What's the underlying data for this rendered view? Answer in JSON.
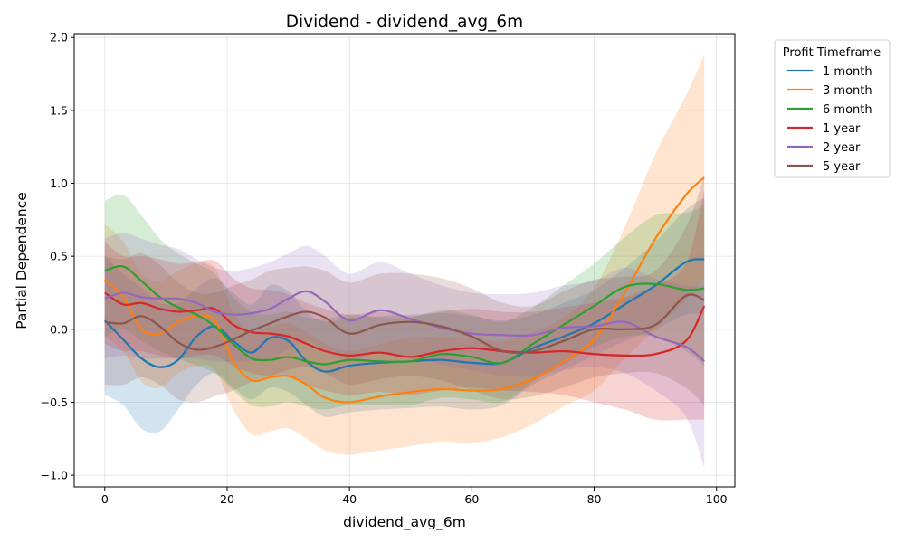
{
  "chart_data": {
    "type": "line",
    "title": "Dividend - dividend_avg_6m",
    "xlabel": "dividend_avg_6m",
    "ylabel": "Partial Dependence",
    "xlim": [
      -5,
      103
    ],
    "ylim": [
      -1.08,
      2.02
    ],
    "xticks": [
      0,
      20,
      40,
      60,
      80,
      100
    ],
    "xtick_labels": [
      "0",
      "20",
      "40",
      "60",
      "80",
      "100"
    ],
    "yticks": [
      -1.0,
      -0.5,
      0.0,
      0.5,
      1.0,
      1.5,
      2.0
    ],
    "ytick_labels": [
      "−1.0",
      "−0.5",
      "0.0",
      "0.5",
      "1.0",
      "1.5",
      "2.0"
    ],
    "grid": true,
    "legend": {
      "title": "Profit Timeframe",
      "placement": "outside-right"
    },
    "series": [
      {
        "name": "1 month",
        "color": "#1f77b4",
        "x": [
          0,
          3,
          6,
          9,
          12,
          15,
          18,
          21,
          24,
          27,
          30,
          33,
          36,
          40,
          45,
          50,
          55,
          60,
          65,
          70,
          75,
          80,
          85,
          90,
          95,
          98
        ],
        "y": [
          0.06,
          -0.07,
          -0.2,
          -0.26,
          -0.21,
          -0.05,
          0.02,
          -0.08,
          -0.16,
          -0.06,
          -0.08,
          -0.22,
          -0.29,
          -0.25,
          -0.23,
          -0.22,
          -0.21,
          -0.23,
          -0.23,
          -0.13,
          -0.05,
          0.04,
          0.17,
          0.3,
          0.46,
          0.48
        ],
        "lower": [
          -0.45,
          -0.52,
          -0.68,
          -0.7,
          -0.55,
          -0.38,
          -0.3,
          -0.4,
          -0.48,
          -0.4,
          -0.43,
          -0.52,
          -0.6,
          -0.57,
          -0.55,
          -0.54,
          -0.53,
          -0.55,
          -0.52,
          -0.38,
          -0.28,
          -0.18,
          -0.08,
          0.0,
          0.1,
          0.1
        ],
        "upper": [
          0.5,
          0.38,
          0.28,
          0.18,
          0.18,
          0.28,
          0.35,
          0.25,
          0.17,
          0.3,
          0.26,
          0.12,
          0.05,
          0.08,
          0.09,
          0.1,
          0.11,
          0.09,
          0.06,
          0.1,
          0.18,
          0.27,
          0.42,
          0.6,
          0.82,
          0.9
        ]
      },
      {
        "name": "3 month",
        "color": "#ff7f0e",
        "x": [
          0,
          3,
          6,
          9,
          12,
          15,
          18,
          21,
          24,
          27,
          30,
          33,
          36,
          40,
          45,
          50,
          55,
          60,
          65,
          70,
          75,
          80,
          85,
          90,
          95,
          98
        ],
        "y": [
          0.34,
          0.22,
          0.0,
          -0.03,
          0.05,
          0.09,
          0.06,
          -0.22,
          -0.35,
          -0.33,
          -0.32,
          -0.38,
          -0.47,
          -0.5,
          -0.46,
          -0.43,
          -0.41,
          -0.42,
          -0.41,
          -0.34,
          -0.22,
          -0.07,
          0.25,
          0.62,
          0.92,
          1.04
        ],
        "lower": [
          -0.05,
          -0.15,
          -0.36,
          -0.4,
          -0.3,
          -0.25,
          -0.28,
          -0.55,
          -0.72,
          -0.7,
          -0.68,
          -0.75,
          -0.83,
          -0.86,
          -0.83,
          -0.8,
          -0.77,
          -0.78,
          -0.74,
          -0.65,
          -0.53,
          -0.42,
          -0.2,
          0.0,
          0.2,
          0.35
        ],
        "upper": [
          0.72,
          0.6,
          0.38,
          0.33,
          0.4,
          0.45,
          0.42,
          0.12,
          -0.02,
          0.02,
          0.04,
          -0.02,
          -0.1,
          -0.15,
          -0.1,
          -0.06,
          -0.05,
          -0.06,
          -0.08,
          -0.02,
          0.08,
          0.28,
          0.7,
          1.2,
          1.6,
          1.88
        ]
      },
      {
        "name": "6 month",
        "color": "#2ca02c",
        "x": [
          0,
          3,
          6,
          9,
          12,
          15,
          18,
          21,
          24,
          27,
          30,
          33,
          36,
          40,
          45,
          50,
          55,
          60,
          65,
          70,
          75,
          80,
          85,
          90,
          95,
          98
        ],
        "y": [
          0.4,
          0.43,
          0.33,
          0.22,
          0.15,
          0.1,
          0.02,
          -0.1,
          -0.2,
          -0.21,
          -0.19,
          -0.22,
          -0.24,
          -0.21,
          -0.22,
          -0.22,
          -0.17,
          -0.19,
          -0.23,
          -0.1,
          0.03,
          0.16,
          0.29,
          0.31,
          0.27,
          0.28
        ],
        "lower": [
          -0.05,
          0.0,
          -0.08,
          -0.15,
          -0.2,
          -0.25,
          -0.3,
          -0.42,
          -0.52,
          -0.53,
          -0.5,
          -0.53,
          -0.55,
          -0.52,
          -0.52,
          -0.52,
          -0.47,
          -0.48,
          -0.5,
          -0.36,
          -0.24,
          -0.12,
          -0.05,
          -0.05,
          -0.15,
          -0.25
        ],
        "upper": [
          0.88,
          0.92,
          0.78,
          0.62,
          0.52,
          0.45,
          0.38,
          0.22,
          0.12,
          0.1,
          0.12,
          0.08,
          0.07,
          0.1,
          0.08,
          0.08,
          0.13,
          0.1,
          0.05,
          0.15,
          0.3,
          0.45,
          0.63,
          0.78,
          0.8,
          0.85
        ]
      },
      {
        "name": "1 year",
        "color": "#d62728",
        "x": [
          0,
          3,
          6,
          9,
          12,
          15,
          18,
          21,
          24,
          27,
          30,
          33,
          36,
          40,
          45,
          50,
          55,
          60,
          65,
          70,
          75,
          80,
          85,
          90,
          95,
          98
        ],
        "y": [
          0.25,
          0.17,
          0.18,
          0.14,
          0.12,
          0.13,
          0.14,
          0.03,
          -0.02,
          -0.03,
          -0.05,
          -0.1,
          -0.15,
          -0.18,
          -0.16,
          -0.19,
          -0.15,
          -0.13,
          -0.15,
          -0.16,
          -0.15,
          -0.17,
          -0.18,
          -0.17,
          -0.08,
          0.16
        ],
        "lower": [
          -0.1,
          -0.15,
          -0.15,
          -0.18,
          -0.2,
          -0.18,
          -0.18,
          -0.25,
          -0.3,
          -0.32,
          -0.33,
          -0.38,
          -0.42,
          -0.45,
          -0.43,
          -0.45,
          -0.42,
          -0.4,
          -0.42,
          -0.43,
          -0.45,
          -0.5,
          -0.55,
          -0.62,
          -0.62,
          -0.62
        ],
        "upper": [
          0.6,
          0.5,
          0.5,
          0.48,
          0.45,
          0.46,
          0.47,
          0.35,
          0.28,
          0.27,
          0.24,
          0.18,
          0.14,
          0.1,
          0.12,
          0.09,
          0.12,
          0.14,
          0.12,
          0.12,
          0.15,
          0.18,
          0.22,
          0.3,
          0.45,
          0.95
        ]
      },
      {
        "name": "2 year",
        "color": "#9467bd",
        "x": [
          0,
          3,
          6,
          9,
          12,
          15,
          18,
          21,
          24,
          27,
          30,
          33,
          36,
          40,
          45,
          50,
          55,
          60,
          65,
          70,
          75,
          80,
          85,
          90,
          95,
          98
        ],
        "y": [
          0.21,
          0.25,
          0.22,
          0.21,
          0.21,
          0.18,
          0.12,
          0.1,
          0.11,
          0.14,
          0.21,
          0.26,
          0.19,
          0.06,
          0.13,
          0.07,
          0.01,
          -0.03,
          -0.04,
          -0.04,
          0.01,
          0.02,
          0.05,
          -0.05,
          -0.12,
          -0.22
        ],
        "lower": [
          -0.2,
          -0.18,
          -0.2,
          -0.2,
          -0.2,
          -0.2,
          -0.22,
          -0.22,
          -0.22,
          -0.2,
          -0.14,
          -0.08,
          -0.15,
          -0.22,
          -0.16,
          -0.2,
          -0.24,
          -0.28,
          -0.32,
          -0.32,
          -0.28,
          -0.26,
          -0.3,
          -0.42,
          -0.6,
          -0.95
        ],
        "upper": [
          0.62,
          0.66,
          0.62,
          0.58,
          0.55,
          0.48,
          0.42,
          0.4,
          0.42,
          0.46,
          0.52,
          0.57,
          0.5,
          0.38,
          0.46,
          0.38,
          0.3,
          0.25,
          0.24,
          0.25,
          0.3,
          0.33,
          0.42,
          0.35,
          0.3,
          0.3
        ]
      },
      {
        "name": "5 year",
        "color": "#8c564b",
        "x": [
          0,
          3,
          6,
          9,
          12,
          15,
          18,
          21,
          24,
          27,
          30,
          33,
          36,
          40,
          45,
          50,
          55,
          60,
          65,
          70,
          75,
          80,
          85,
          90,
          95,
          98
        ],
        "y": [
          0.05,
          0.04,
          0.09,
          0.02,
          -0.09,
          -0.14,
          -0.12,
          -0.07,
          -0.01,
          0.04,
          0.09,
          0.12,
          0.08,
          -0.03,
          0.03,
          0.05,
          0.02,
          -0.05,
          -0.15,
          -0.15,
          -0.08,
          0.0,
          0.0,
          0.03,
          0.23,
          0.2
        ],
        "lower": [
          -0.38,
          -0.38,
          -0.33,
          -0.38,
          -0.48,
          -0.5,
          -0.46,
          -0.42,
          -0.36,
          -0.32,
          -0.28,
          -0.26,
          -0.3,
          -0.38,
          -0.34,
          -0.32,
          -0.35,
          -0.42,
          -0.48,
          -0.46,
          -0.4,
          -0.33,
          -0.3,
          -0.3,
          -0.4,
          -0.52
        ],
        "upper": [
          0.5,
          0.48,
          0.52,
          0.44,
          0.32,
          0.25,
          0.25,
          0.3,
          0.34,
          0.4,
          0.42,
          0.43,
          0.4,
          0.32,
          0.38,
          0.38,
          0.35,
          0.28,
          0.18,
          0.16,
          0.26,
          0.34,
          0.36,
          0.4,
          0.7,
          1.05
        ]
      }
    ]
  }
}
